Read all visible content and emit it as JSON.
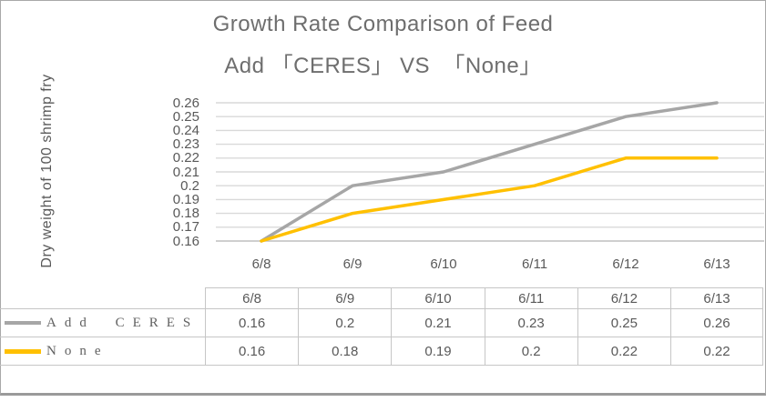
{
  "chart": {
    "title_line1": "Growth Rate Comparison of Feed",
    "title_line2": "Add 「CERES」 VS  「None」",
    "y_axis_title": "Dry weight of 100 shrimp fry"
  },
  "chart_data": {
    "type": "line",
    "title": "Growth Rate Comparison of Feed Add 「CERES」 VS 「None」",
    "xlabel": "",
    "ylabel": "Dry weight of 100 shrimp fry",
    "categories": [
      "6/8",
      "6/9",
      "6/10",
      "6/11",
      "6/12",
      "6/13"
    ],
    "series": [
      {
        "name": "Add CERES",
        "color": "#A6A6A6",
        "values": [
          0.16,
          0.2,
          0.21,
          0.23,
          0.25,
          0.26
        ]
      },
      {
        "name": "None",
        "color": "#FFC000",
        "values": [
          0.16,
          0.18,
          0.19,
          0.2,
          0.22,
          0.22
        ]
      }
    ],
    "ylim": [
      0.16,
      0.26
    ],
    "ytick_step": 0.01,
    "ytick_labels": [
      "0.26",
      "0.25",
      "0.24",
      "0.23",
      "0.22",
      "0.21",
      "0.2",
      "0.19",
      "0.18",
      "0.17",
      "0.16"
    ],
    "grid": true,
    "legend_position": "data-table-left",
    "data_table_shown": true
  },
  "colors": {
    "series_add_ceres": "#A6A6A6",
    "series_none": "#FFC000",
    "gridline": "#D9D9D9",
    "axis_line": "#BFBFBF",
    "text": "#595959",
    "title_text": "#6E6E6E",
    "table_border": "#C6C6C6",
    "frame_border": "#A9A9A9",
    "bottom_bar": "#9A9A9A",
    "background": "#FFFFFF"
  }
}
